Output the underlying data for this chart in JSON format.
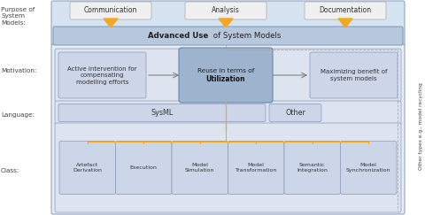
{
  "bg_color": "#ffffff",
  "light_blue_box": "#ccd6e8",
  "medium_blue_box": "#9eb3ce",
  "adv_blue": "#b8c8dc",
  "orange_color": "#f5a623",
  "dashed_color": "#999999",
  "border_color": "#8899bb",
  "row_label_color": "#444444",
  "text_color": "#333333",
  "outer_bg": "#e8ecf4",
  "inner_bg": "#dde4ef",
  "purpose_bg": "#dce6f0",
  "purpose_boxes": [
    "Communication",
    "Analysis",
    "Documentation"
  ],
  "motivation_left": "Active intervention for\ncompensating\nmodelling efforts",
  "motivation_center_line1": "Reuse in terms of",
  "motivation_center_line2": "Utilization",
  "motivation_right": "Maximizing benefit of\nsystem models",
  "language_sysml": "SysML",
  "language_other": "Other",
  "class_boxes": [
    "Artefact\nDerivation",
    "Execution",
    "Model\nSimulation",
    "Model\nTransformation",
    "Semantic\nIntegration",
    "Model\nSynchronization"
  ],
  "row_labels": [
    "Purpose of\nSystem\nModels:",
    "Motivation:",
    "Language:",
    "Class:"
  ],
  "side_label": "Other types e.g., model recycling",
  "figsize": [
    4.8,
    2.43
  ],
  "dpi": 100
}
